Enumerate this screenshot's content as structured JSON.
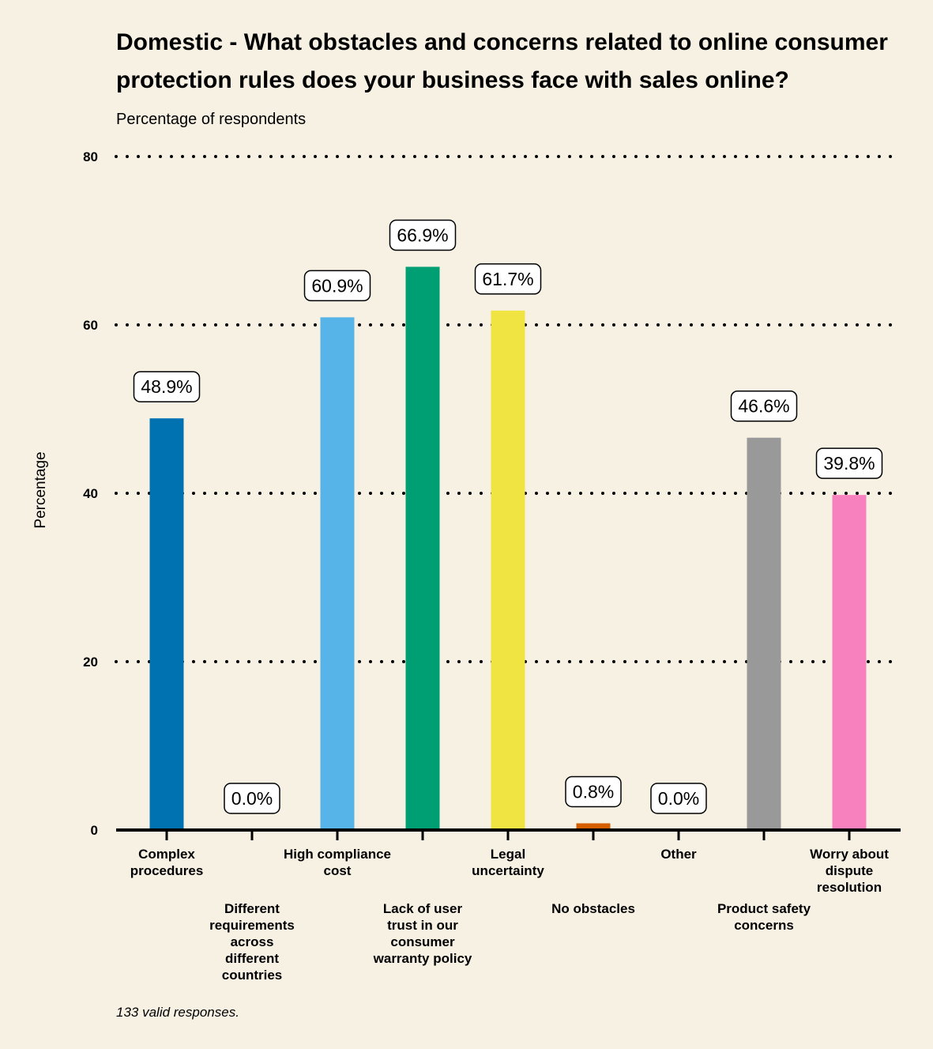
{
  "title": "Domestic - What obstacles and concerns related to online consumer protection rules does your business face with sales online?",
  "subtitle": "Percentage of respondents",
  "footnote": "133 valid responses.",
  "chart_data": {
    "type": "bar",
    "title": "Domestic - What obstacles and concerns related to online consumer protection rules does your business face with sales online?",
    "subtitle": "Percentage of respondents",
    "xlabel": "",
    "ylabel": "Percentage",
    "ylim": [
      0,
      80
    ],
    "yticks": [
      0,
      20,
      40,
      60,
      80
    ],
    "grid": true,
    "legend": "none",
    "categories": [
      "Complex procedures",
      "Different requirements across different countries",
      "High compliance cost",
      "Lack of user trust in our consumer warranty policy",
      "Legal uncertainty",
      "No obstacles",
      "Other",
      "Product safety concerns",
      "Worry about dispute resolution"
    ],
    "category_label_lines": [
      [
        "Complex",
        "procedures"
      ],
      [
        "Different",
        "requirements",
        "across",
        "different",
        "countries"
      ],
      [
        "High compliance",
        "cost"
      ],
      [
        "Lack of user",
        "trust in our",
        "consumer",
        "warranty policy"
      ],
      [
        "Legal",
        "uncertainty"
      ],
      [
        "No obstacles"
      ],
      [
        "Other"
      ],
      [
        "Product safety",
        "concerns"
      ],
      [
        "Worry about",
        "dispute",
        "resolution"
      ]
    ],
    "values": [
      48.9,
      0.0,
      60.9,
      66.9,
      61.7,
      0.8,
      0.0,
      46.6,
      39.8
    ],
    "data_labels": [
      "48.9%",
      "0.0%",
      "60.9%",
      "66.9%",
      "61.7%",
      "0.8%",
      "0.0%",
      "46.6%",
      "39.8%"
    ],
    "colors": [
      "#0072b2",
      "#cccccc",
      "#56b4e9",
      "#009e73",
      "#f0e442",
      "#d55e00",
      "#999999",
      "#999999",
      "#f781bf"
    ]
  }
}
